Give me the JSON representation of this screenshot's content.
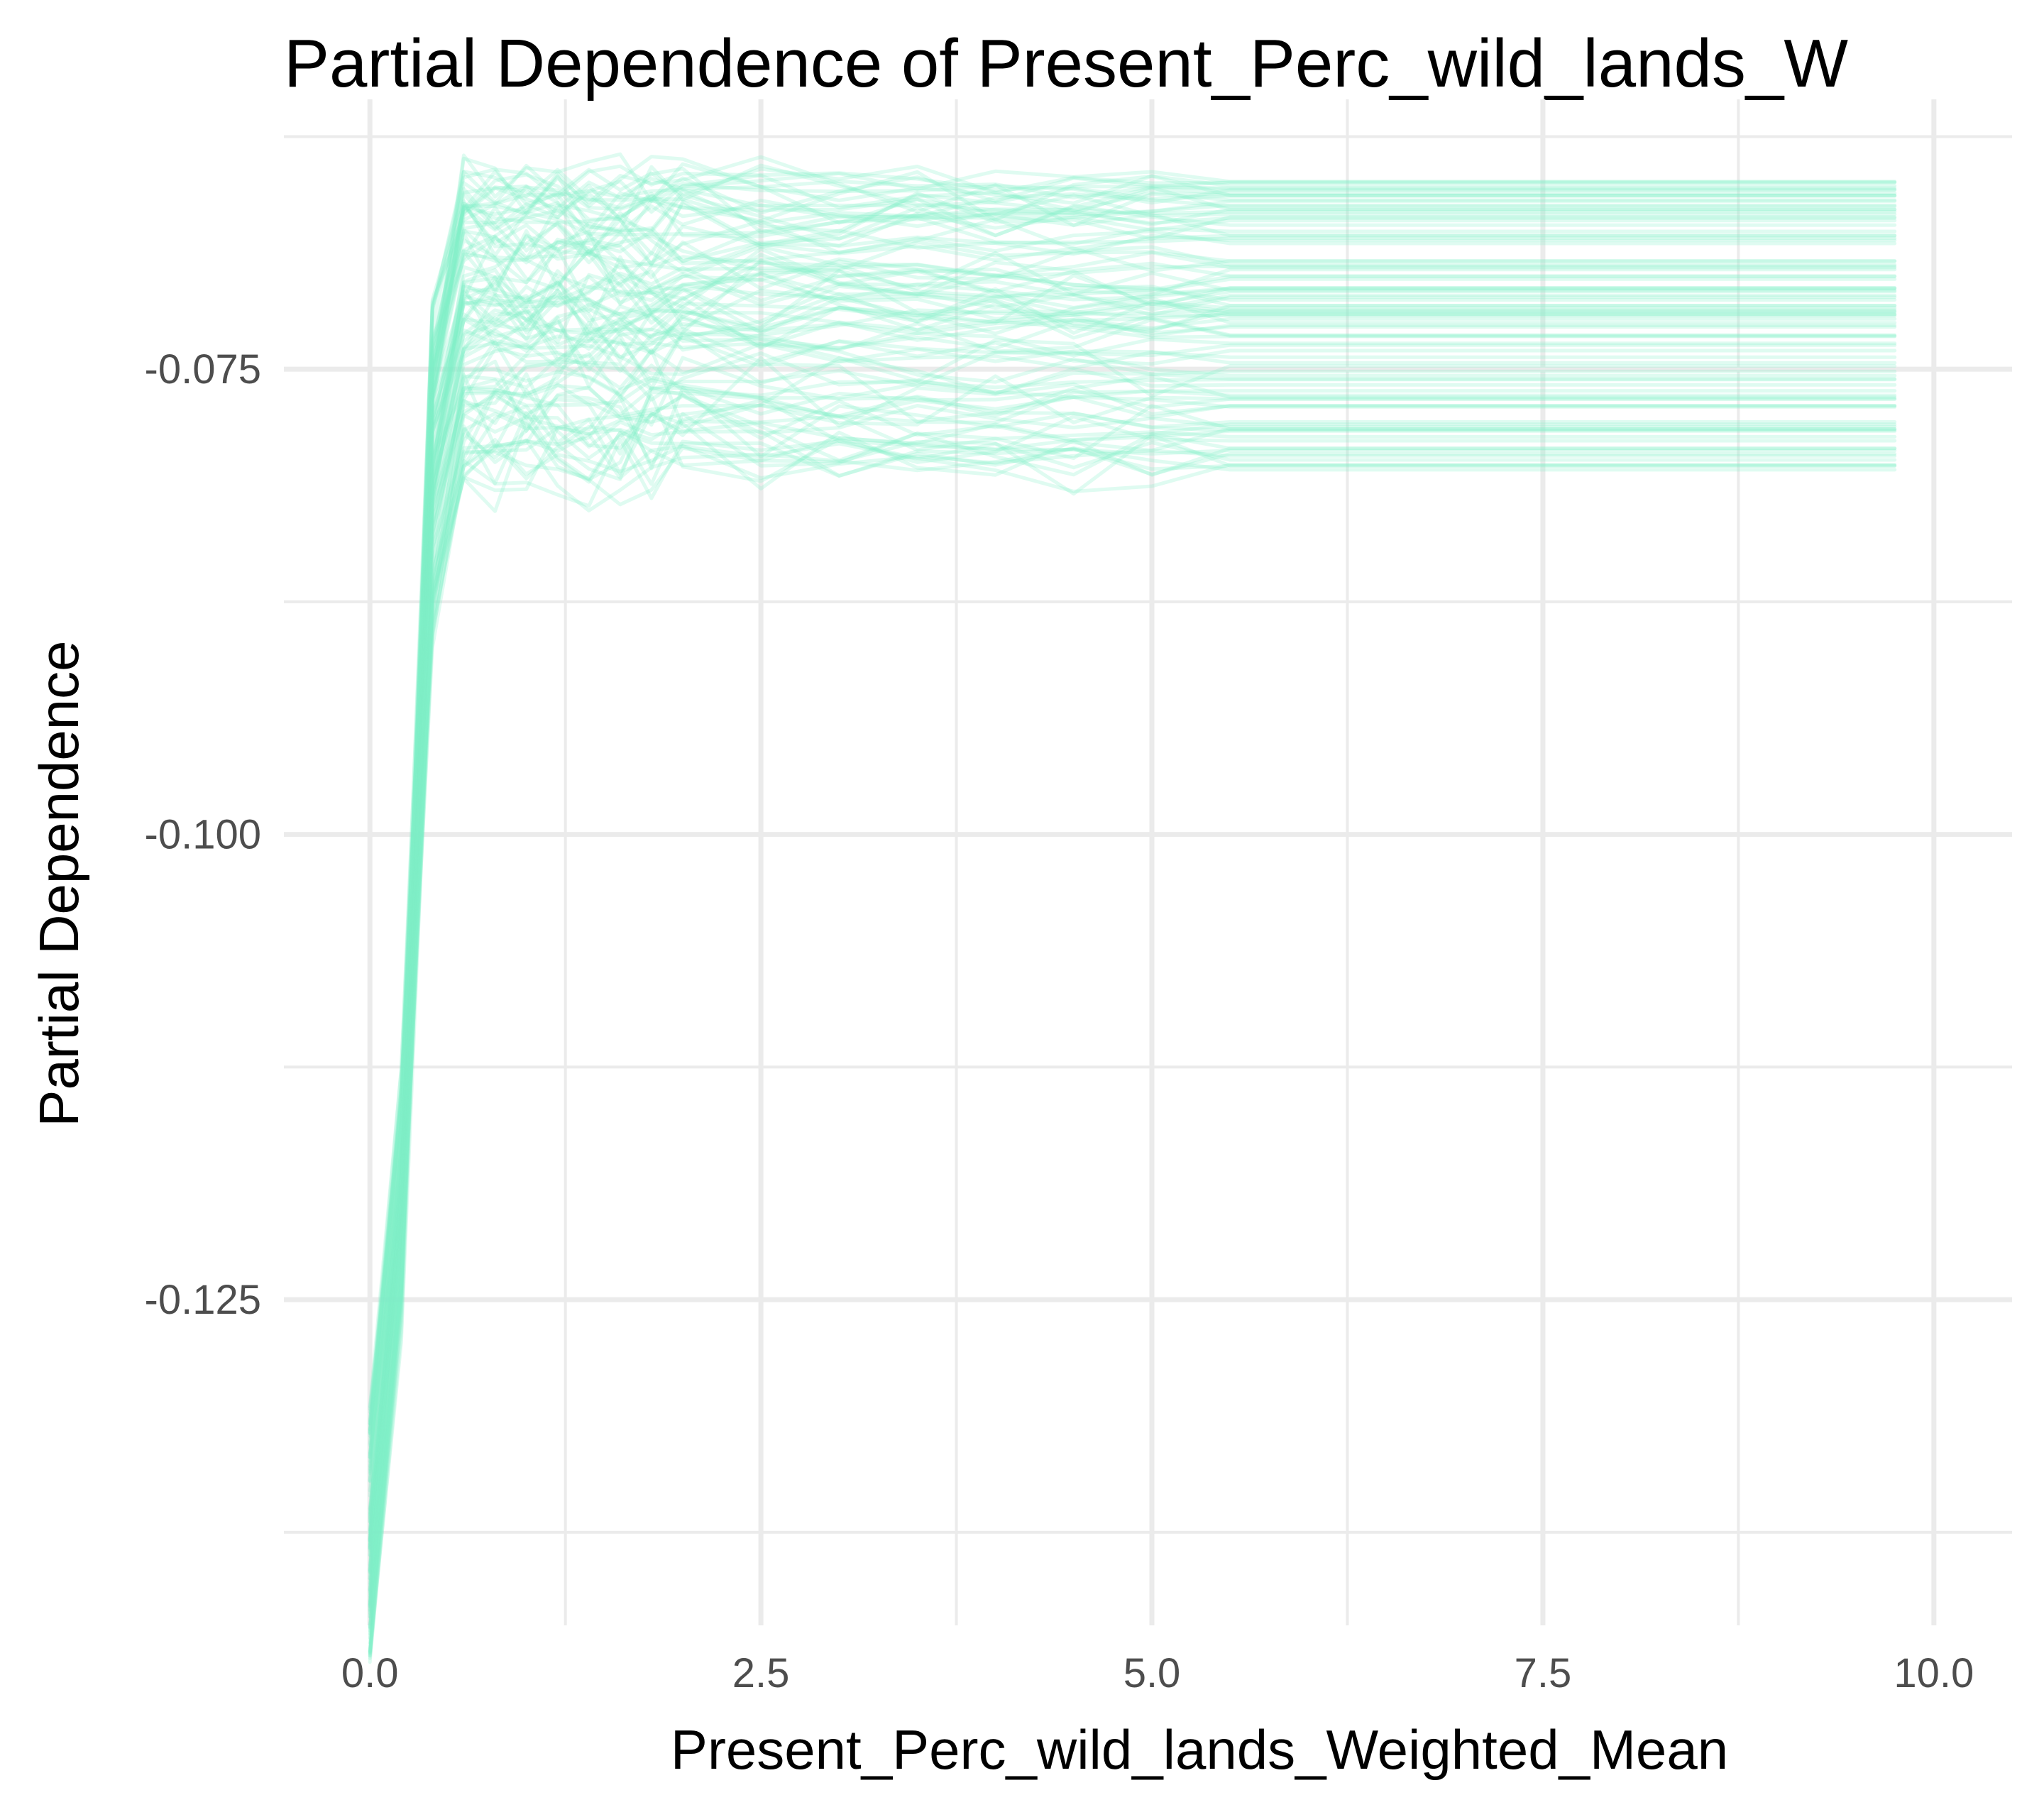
{
  "chart_data": {
    "type": "line",
    "title": "Partial Dependence of Present_Perc_wild_lands_W",
    "xlabel": "Present_Perc_wild_lands_Weighted_Mean",
    "ylabel": "Partial Dependence",
    "xlim": [
      -0.55,
      10.5
    ],
    "ylim": [
      -0.1425,
      -0.0605
    ],
    "x_ticks": [
      0.0,
      2.5,
      5.0,
      7.5,
      10.0
    ],
    "x_tick_labels": [
      "0.0",
      "2.5",
      "5.0",
      "7.5",
      "10.0"
    ],
    "y_ticks": [
      -0.075,
      -0.1,
      -0.125
    ],
    "y_tick_labels": [
      "-0.075",
      "-0.100",
      "-0.125"
    ],
    "x_minor": [
      1.25,
      3.75,
      6.25,
      8.75
    ],
    "y_minor": [
      -0.0625,
      -0.0875,
      -0.1125,
      -0.1375
    ],
    "grid": true,
    "legend": "none",
    "line_color": "#7FEFC8",
    "line_opacity": 0.25,
    "n_lines": 100,
    "x_grid": [
      0.0,
      0.2,
      0.4,
      0.6,
      0.8,
      1.0,
      1.2,
      1.4,
      1.6,
      1.8,
      2.0,
      2.5,
      3.0,
      3.5,
      4.0,
      4.5,
      5.0,
      5.5,
      6.0,
      7.0,
      8.0,
      9.0,
      9.75
    ],
    "start_range": [
      -0.1445,
      -0.1305
    ],
    "plateau_range": [
      -0.0807,
      -0.0645
    ],
    "description_of_series": "ICE curves: each line rises steeply from about -0.135 at x=0 to its plateau by x≈0.4-0.6, then stays roughly flat to x=9.75"
  }
}
